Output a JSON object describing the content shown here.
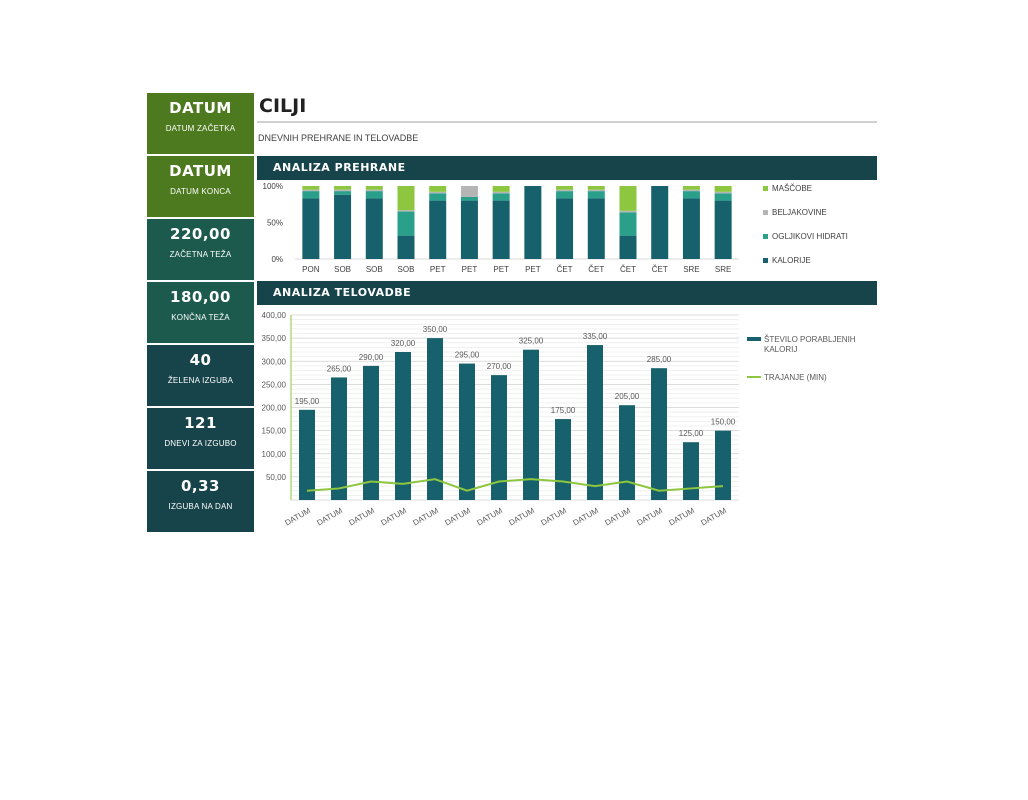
{
  "sidebar": {
    "tiles": [
      {
        "value": "DATUM",
        "label": "DATUM ZAČETKA",
        "color": "#4e7a1f"
      },
      {
        "value": "DATUM",
        "label": "DATUM KONCA",
        "color": "#4e7a1f"
      },
      {
        "value": "220,00",
        "label": "ZAČETNA TEŽA",
        "color": "#1c5a4e"
      },
      {
        "value": "180,00",
        "label": "KONČNA TEŽA",
        "color": "#1c5a4e"
      },
      {
        "value": "40",
        "label": "ŽELENA IZGUBA",
        "color": "#17434a"
      },
      {
        "value": "121",
        "label": "DNEVI ZA IZGUBO",
        "color": "#17434a"
      },
      {
        "value": "0,33",
        "label": "IZGUBA NA DAN",
        "color": "#17434a"
      }
    ]
  },
  "header": {
    "title": "CILJI",
    "subtitle": "DNEVNIH PREHRANE IN TELOVADBE"
  },
  "sections": {
    "nutrition": "ANALIZA PREHRANE",
    "exercise": "ANALIZA TELOVADBE"
  },
  "chart_data": [
    {
      "type": "bar",
      "stacked": "percent",
      "categories": [
        "PON",
        "SOB",
        "SOB",
        "SOB",
        "PET",
        "PET",
        "PET",
        "PET",
        "ČET",
        "ČET",
        "ČET",
        "ČET",
        "SRE",
        "SRE"
      ],
      "yticks": [
        "100%",
        "50%",
        "0%"
      ],
      "ylim": [
        0,
        100
      ],
      "legend_position": "right",
      "series": [
        {
          "name": "KALORIJE",
          "color": "#17616d",
          "values": [
            83,
            88,
            83,
            32,
            80,
            80,
            80,
            100,
            83,
            83,
            32,
            100,
            83,
            80
          ]
        },
        {
          "name": "OGLJIKOVI HIDRATI",
          "color": "#2aa08a",
          "values": [
            10,
            5,
            10,
            33,
            10,
            5,
            10,
            0,
            10,
            10,
            32,
            0,
            10,
            10
          ]
        },
        {
          "name": "BELJAKOVINE",
          "color": "#b5b5b5",
          "values": [
            2,
            2,
            2,
            2,
            2,
            15,
            2,
            0,
            2,
            2,
            2,
            0,
            2,
            2
          ]
        },
        {
          "name": "MAŠČOBE",
          "color": "#8dc63f",
          "values": [
            5,
            5,
            5,
            33,
            8,
            0,
            8,
            0,
            5,
            5,
            34,
            0,
            5,
            8
          ]
        }
      ]
    },
    {
      "type": "bar",
      "categories": [
        "DATUM",
        "DATUM",
        "DATUM",
        "DATUM",
        "DATUM",
        "DATUM",
        "DATUM",
        "DATUM",
        "DATUM",
        "DATUM",
        "DATUM",
        "DATUM",
        "DATUM",
        "DATUM"
      ],
      "yticks": [
        "400,00",
        "350,00",
        "300,00",
        "250,00",
        "200,00",
        "150,00",
        "100,00",
        "50,00"
      ],
      "ylim": [
        0,
        400
      ],
      "legend_position": "right",
      "grid": true,
      "series": [
        {
          "name": "ŠTEVILO PORABLJENIH KALORIJ",
          "type": "bar",
          "color": "#17616d",
          "values": [
            195,
            265,
            290,
            320,
            350,
            295,
            270,
            325,
            175,
            335,
            205,
            285,
            125,
            150
          ],
          "labels": [
            "195,00",
            "265,00",
            "290,00",
            "320,00",
            "350,00",
            "295,00",
            "270,00",
            "325,00",
            "175,00",
            "335,00",
            "205,00",
            "285,00",
            "125,00",
            "150,00"
          ]
        },
        {
          "name": "TRAJANJE (MIN)",
          "type": "line",
          "color": "#8dc63f",
          "values": [
            20,
            25,
            40,
            35,
            45,
            20,
            40,
            45,
            40,
            30,
            40,
            20,
            25,
            30
          ]
        }
      ]
    }
  ]
}
